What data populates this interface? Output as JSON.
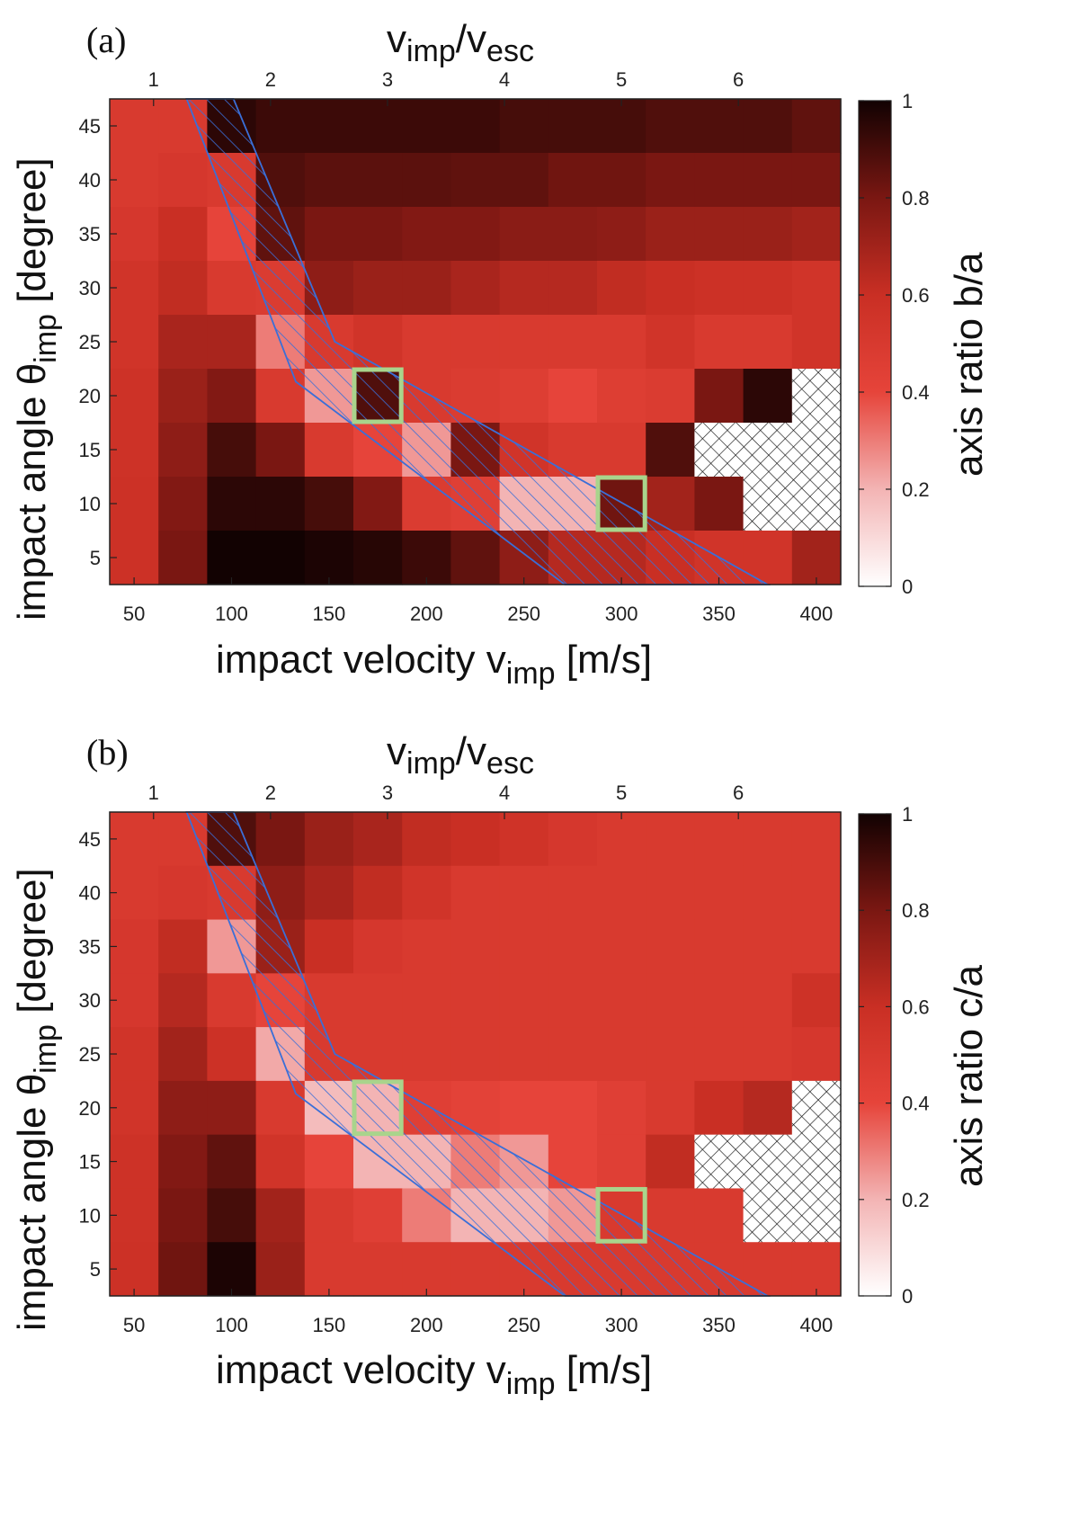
{
  "chart_data": [
    {
      "type": "heatmap",
      "panel": "(a)",
      "xlabel_main": "impact velocity v",
      "xlabel_sub": "imp",
      "xlabel_unit": " [m/s]",
      "ylabel_main": "impact angle θ",
      "ylabel_sub": "imp",
      "ylabel_unit": " [degree]",
      "top_label": {
        "v1": "v",
        "s1": "imp",
        "slash": "/",
        "v2": "v",
        "s2": "esc"
      },
      "colorbar_label": "axis ratio b/a",
      "colorbar_ticks": [
        "0",
        "0.2",
        "0.4",
        "0.6",
        "0.8",
        "1"
      ],
      "x_values": [
        50,
        75,
        100,
        125,
        150,
        175,
        200,
        225,
        250,
        275,
        300,
        325,
        350,
        375,
        400
      ],
      "x_tick_labels": [
        "50",
        "100",
        "150",
        "200",
        "250",
        "300",
        "350",
        "400"
      ],
      "y_values": [
        5,
        10,
        15,
        20,
        25,
        30,
        35,
        40,
        45
      ],
      "y_tick_labels": [
        "5",
        "10",
        "15",
        "20",
        "25",
        "30",
        "35",
        "40",
        "45"
      ],
      "top_ticks": [
        "1",
        "2",
        "3",
        "4",
        "5",
        "6"
      ],
      "vesc_ms": 60,
      "zlim": [
        0,
        1
      ],
      "z_rows_from_45_to_5": [
        [
          0.5,
          0.5,
          0.95,
          0.92,
          0.92,
          0.92,
          0.92,
          0.92,
          0.9,
          0.9,
          0.9,
          0.88,
          0.88,
          0.88,
          0.85
        ],
        [
          0.5,
          0.52,
          0.5,
          0.88,
          0.86,
          0.86,
          0.86,
          0.85,
          0.85,
          0.82,
          0.82,
          0.8,
          0.8,
          0.8,
          0.8
        ],
        [
          0.52,
          0.6,
          0.4,
          0.85,
          0.8,
          0.8,
          0.78,
          0.78,
          0.76,
          0.76,
          0.75,
          0.72,
          0.72,
          0.72,
          0.7
        ],
        [
          0.55,
          0.62,
          0.5,
          0.48,
          0.75,
          0.72,
          0.72,
          0.68,
          0.65,
          0.65,
          0.62,
          0.6,
          0.58,
          0.58,
          0.55
        ],
        [
          0.55,
          0.68,
          0.68,
          0.3,
          0.5,
          0.55,
          0.5,
          0.5,
          0.5,
          0.5,
          0.5,
          0.55,
          0.5,
          0.5,
          0.55
        ],
        [
          0.57,
          0.72,
          0.78,
          0.5,
          0.25,
          0.88,
          0.5,
          0.48,
          0.46,
          0.4,
          0.46,
          0.48,
          0.8,
          0.95,
          null
        ],
        [
          0.57,
          0.75,
          0.9,
          0.8,
          0.5,
          0.4,
          0.25,
          0.8,
          0.55,
          0.5,
          0.5,
          0.88,
          null,
          null,
          null
        ],
        [
          0.58,
          0.78,
          0.95,
          0.95,
          0.9,
          0.78,
          0.48,
          0.45,
          0.2,
          0.2,
          0.82,
          0.7,
          0.8,
          null,
          null
        ],
        [
          0.58,
          0.8,
          1.0,
          1.0,
          0.98,
          0.96,
          0.92,
          0.85,
          0.75,
          0.65,
          0.65,
          0.6,
          0.55,
          0.55,
          0.7
        ]
      ],
      "boxes": [
        [
          175,
          20
        ],
        [
          300,
          10
        ]
      ]
    },
    {
      "type": "heatmap",
      "panel": "(b)",
      "xlabel_main": "impact velocity v",
      "xlabel_sub": "imp",
      "xlabel_unit": " [m/s]",
      "ylabel_main": "impact angle θ",
      "ylabel_sub": "imp",
      "ylabel_unit": " [degree]",
      "top_label": {
        "v1": "v",
        "s1": "imp",
        "slash": "/",
        "v2": "v",
        "s2": "esc"
      },
      "colorbar_label": "axis ratio c/a",
      "colorbar_ticks": [
        "0",
        "0.2",
        "0.4",
        "0.6",
        "0.8",
        "1"
      ],
      "x_values": [
        50,
        75,
        100,
        125,
        150,
        175,
        200,
        225,
        250,
        275,
        300,
        325,
        350,
        375,
        400
      ],
      "x_tick_labels": [
        "50",
        "100",
        "150",
        "200",
        "250",
        "300",
        "350",
        "400"
      ],
      "y_values": [
        5,
        10,
        15,
        20,
        25,
        30,
        35,
        40,
        45
      ],
      "y_tick_labels": [
        "5",
        "10",
        "15",
        "20",
        "25",
        "30",
        "35",
        "40",
        "45"
      ],
      "top_ticks": [
        "1",
        "2",
        "3",
        "4",
        "5",
        "6"
      ],
      "vesc_ms": 60,
      "zlim": [
        0,
        1
      ],
      "z_rows_from_45_to_5": [
        [
          0.5,
          0.5,
          0.88,
          0.8,
          0.72,
          0.68,
          0.62,
          0.6,
          0.56,
          0.52,
          0.5,
          0.5,
          0.5,
          0.5,
          0.5
        ],
        [
          0.5,
          0.52,
          0.5,
          0.75,
          0.68,
          0.62,
          0.55,
          0.5,
          0.5,
          0.5,
          0.5,
          0.5,
          0.5,
          0.5,
          0.5
        ],
        [
          0.52,
          0.62,
          0.25,
          0.72,
          0.6,
          0.52,
          0.5,
          0.5,
          0.5,
          0.5,
          0.5,
          0.5,
          0.5,
          0.5,
          0.5
        ],
        [
          0.52,
          0.65,
          0.5,
          0.4,
          0.5,
          0.5,
          0.5,
          0.5,
          0.5,
          0.5,
          0.5,
          0.5,
          0.5,
          0.5,
          0.57
        ],
        [
          0.55,
          0.7,
          0.58,
          0.22,
          0.5,
          0.5,
          0.5,
          0.5,
          0.5,
          0.5,
          0.5,
          0.5,
          0.5,
          0.5,
          0.52
        ],
        [
          0.55,
          0.75,
          0.75,
          0.5,
          0.18,
          0.2,
          0.45,
          0.42,
          0.4,
          0.4,
          0.45,
          0.5,
          0.6,
          0.65,
          null
        ],
        [
          0.57,
          0.78,
          0.85,
          0.55,
          0.4,
          0.2,
          0.2,
          0.3,
          0.25,
          0.4,
          0.45,
          0.62,
          null,
          null,
          null
        ],
        [
          0.57,
          0.8,
          0.9,
          0.7,
          0.5,
          0.45,
          0.3,
          0.2,
          0.2,
          0.25,
          0.5,
          0.5,
          0.5,
          null,
          null
        ],
        [
          0.58,
          0.82,
          0.98,
          0.72,
          0.5,
          0.5,
          0.5,
          0.5,
          0.5,
          0.5,
          0.5,
          0.5,
          0.5,
          0.5,
          0.5
        ]
      ],
      "boxes": [
        [
          175,
          20
        ],
        [
          300,
          10
        ]
      ]
    }
  ]
}
